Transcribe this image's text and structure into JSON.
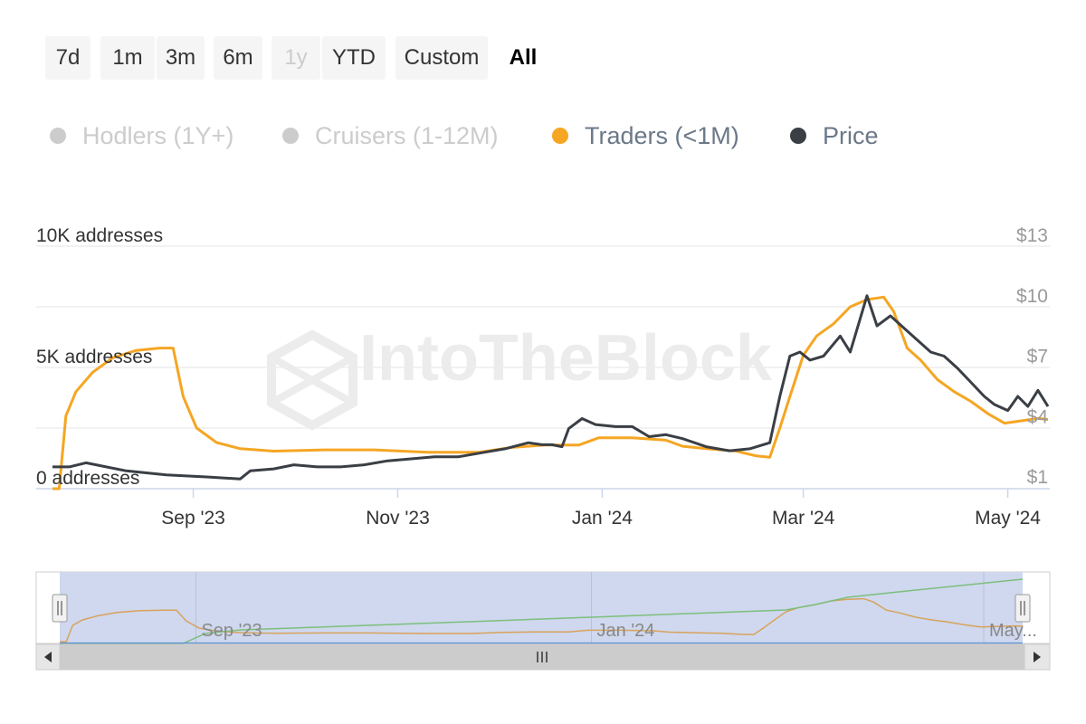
{
  "range_selector": {
    "buttons": [
      {
        "label": "7d",
        "state": "normal"
      },
      {
        "label": "1m",
        "state": "normal"
      },
      {
        "label": "3m",
        "state": "normal"
      },
      {
        "label": "6m",
        "state": "normal"
      },
      {
        "label": "1y",
        "state": "disabled"
      },
      {
        "label": "YTD",
        "state": "normal"
      },
      {
        "label": "Custom",
        "state": "normal"
      },
      {
        "label": "All",
        "state": "selected"
      }
    ]
  },
  "legend": {
    "items": [
      {
        "label": "Hodlers (1Y+)",
        "color": "#cccccc",
        "visible": false
      },
      {
        "label": "Cruisers (1-12M)",
        "color": "#cccccc",
        "visible": false
      },
      {
        "label": "Traders (<1M)",
        "color": "#f5a623",
        "visible": true
      },
      {
        "label": "Price",
        "color": "#3a3f45",
        "visible": true
      }
    ]
  },
  "watermark": "IntoTheBlock",
  "navigator": {
    "labels": [
      "Sep '23",
      "Jan '24",
      "May..."
    ],
    "scroll_thumb_icon": "grip-lines-icon",
    "handle_icon": "grip-handle-icon",
    "series_colors": {
      "traders": "#d8a25c",
      "hodlers": "#7cbf7c",
      "cruisers": "#5b8fd6"
    }
  },
  "chart_data": {
    "type": "line",
    "x_tick_labels": [
      "Sep '23",
      "Nov '23",
      "Jan '24",
      "Mar '24",
      "May '24"
    ],
    "x_tick_dates": [
      "2023-09-01",
      "2023-11-01",
      "2024-01-01",
      "2024-03-01",
      "2024-05-01"
    ],
    "x_range": [
      "2023-07-21",
      "2024-05-13"
    ],
    "y_left": {
      "tick_labels": [
        "0 addresses",
        "5K addresses",
        "10K addresses"
      ],
      "ticks": [
        0,
        5000,
        10000
      ],
      "range": [
        0,
        10000
      ]
    },
    "y_right": {
      "tick_labels": [
        "$1",
        "$4",
        "$7",
        "$10",
        "$13"
      ],
      "ticks": [
        1,
        4,
        7,
        10,
        13
      ],
      "range": [
        1,
        13
      ]
    },
    "grid": true,
    "series": [
      {
        "name": "Traders (<1M)",
        "axis": "left",
        "color": "#f5a623",
        "points": [
          [
            "2023-07-21",
            0
          ],
          [
            "2023-07-23",
            0
          ],
          [
            "2023-07-25",
            3000
          ],
          [
            "2023-07-28",
            4000
          ],
          [
            "2023-08-02",
            4800
          ],
          [
            "2023-08-08",
            5400
          ],
          [
            "2023-08-15",
            5700
          ],
          [
            "2023-08-22",
            5800
          ],
          [
            "2023-08-26",
            5800
          ],
          [
            "2023-08-29",
            3800
          ],
          [
            "2023-09-02",
            2500
          ],
          [
            "2023-09-08",
            1900
          ],
          [
            "2023-09-15",
            1650
          ],
          [
            "2023-09-25",
            1550
          ],
          [
            "2023-10-10",
            1600
          ],
          [
            "2023-10-25",
            1600
          ],
          [
            "2023-11-10",
            1500
          ],
          [
            "2023-11-25",
            1500
          ],
          [
            "2023-12-05",
            1700
          ],
          [
            "2023-12-15",
            1800
          ],
          [
            "2023-12-25",
            1800
          ],
          [
            "2023-12-31",
            2100
          ],
          [
            "2024-01-10",
            2100
          ],
          [
            "2024-01-20",
            2000
          ],
          [
            "2024-01-25",
            1750
          ],
          [
            "2024-02-01",
            1650
          ],
          [
            "2024-02-10",
            1550
          ],
          [
            "2024-02-16",
            1350
          ],
          [
            "2024-02-20",
            1300
          ],
          [
            "2024-02-23",
            2500
          ],
          [
            "2024-02-26",
            3800
          ],
          [
            "2024-03-01",
            5500
          ],
          [
            "2024-03-05",
            6300
          ],
          [
            "2024-03-10",
            6800
          ],
          [
            "2024-03-15",
            7500
          ],
          [
            "2024-03-20",
            7800
          ],
          [
            "2024-03-25",
            7900
          ],
          [
            "2024-03-28",
            7300
          ],
          [
            "2024-04-01",
            5800
          ],
          [
            "2024-04-05",
            5300
          ],
          [
            "2024-04-10",
            4500
          ],
          [
            "2024-04-15",
            4000
          ],
          [
            "2024-04-20",
            3600
          ],
          [
            "2024-04-25",
            3100
          ],
          [
            "2024-04-30",
            2700
          ],
          [
            "2024-05-05",
            2800
          ],
          [
            "2024-05-10",
            2900
          ],
          [
            "2024-05-13",
            2850
          ]
        ]
      },
      {
        "name": "Price",
        "axis": "right",
        "color": "#3a3f45",
        "points": [
          [
            "2023-07-21",
            1.5
          ],
          [
            "2023-07-26",
            1.5
          ],
          [
            "2023-07-31",
            1.7
          ],
          [
            "2023-08-06",
            1.5
          ],
          [
            "2023-08-12",
            1.3
          ],
          [
            "2023-08-18",
            1.2
          ],
          [
            "2023-08-24",
            1.1
          ],
          [
            "2023-08-30",
            1.05
          ],
          [
            "2023-09-05",
            1.0
          ],
          [
            "2023-09-10",
            0.95
          ],
          [
            "2023-09-15",
            0.9
          ],
          [
            "2023-09-18",
            1.3
          ],
          [
            "2023-09-25",
            1.4
          ],
          [
            "2023-10-01",
            1.6
          ],
          [
            "2023-10-08",
            1.5
          ],
          [
            "2023-10-15",
            1.5
          ],
          [
            "2023-10-22",
            1.6
          ],
          [
            "2023-10-29",
            1.8
          ],
          [
            "2023-11-05",
            1.9
          ],
          [
            "2023-11-12",
            2.0
          ],
          [
            "2023-11-19",
            2.0
          ],
          [
            "2023-11-26",
            2.2
          ],
          [
            "2023-12-03",
            2.4
          ],
          [
            "2023-12-10",
            2.7
          ],
          [
            "2023-12-14",
            2.6
          ],
          [
            "2023-12-17",
            2.6
          ],
          [
            "2023-12-20",
            2.5
          ],
          [
            "2023-12-22",
            3.4
          ],
          [
            "2023-12-26",
            3.9
          ],
          [
            "2023-12-30",
            3.6
          ],
          [
            "2024-01-05",
            3.5
          ],
          [
            "2024-01-10",
            3.5
          ],
          [
            "2024-01-15",
            3.0
          ],
          [
            "2024-01-20",
            3.1
          ],
          [
            "2024-01-25",
            2.9
          ],
          [
            "2024-02-01",
            2.5
          ],
          [
            "2024-02-08",
            2.3
          ],
          [
            "2024-02-14",
            2.4
          ],
          [
            "2024-02-20",
            2.7
          ],
          [
            "2024-02-23",
            5.0
          ],
          [
            "2024-02-26",
            7.0
          ],
          [
            "2024-02-29",
            7.2
          ],
          [
            "2024-03-03",
            6.8
          ],
          [
            "2024-03-07",
            7.0
          ],
          [
            "2024-03-12",
            8.0
          ],
          [
            "2024-03-15",
            7.2
          ],
          [
            "2024-03-20",
            10.0
          ],
          [
            "2024-03-23",
            8.5
          ],
          [
            "2024-03-27",
            9.0
          ],
          [
            "2024-03-31",
            8.4
          ],
          [
            "2024-04-04",
            7.8
          ],
          [
            "2024-04-08",
            7.2
          ],
          [
            "2024-04-12",
            7.0
          ],
          [
            "2024-04-16",
            6.4
          ],
          [
            "2024-04-20",
            5.7
          ],
          [
            "2024-04-24",
            5.0
          ],
          [
            "2024-04-27",
            4.6
          ],
          [
            "2024-05-01",
            4.3
          ],
          [
            "2024-05-04",
            5.0
          ],
          [
            "2024-05-07",
            4.5
          ],
          [
            "2024-05-10",
            5.3
          ],
          [
            "2024-05-13",
            4.5
          ]
        ]
      }
    ]
  }
}
